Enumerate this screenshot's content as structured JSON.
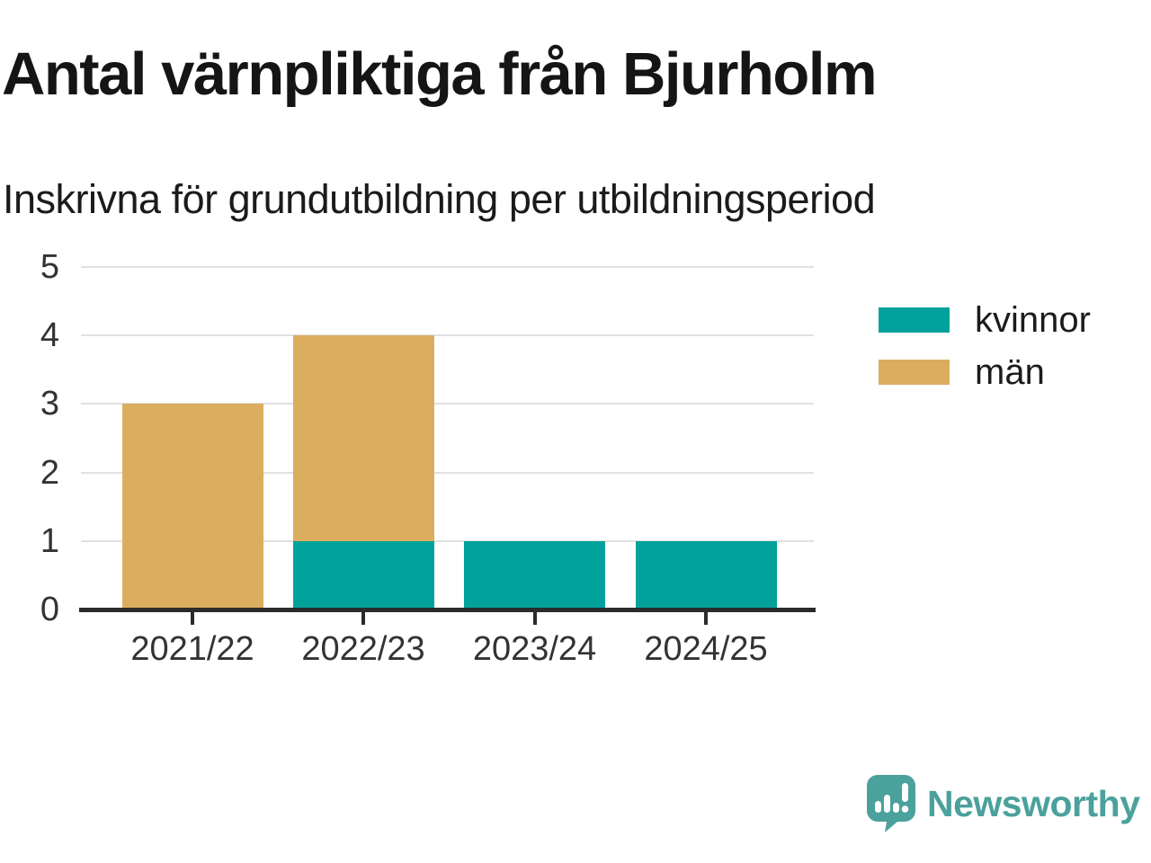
{
  "chart_data": {
    "type": "bar",
    "stacked": true,
    "title": "Antal värnpliktiga från Bjurholm",
    "subtitle": "Inskrivna för grundutbildning per utbildningsperiod",
    "categories": [
      "2021/22",
      "2022/23",
      "2023/24",
      "2024/25"
    ],
    "series": [
      {
        "name": "kvinnor",
        "color": "#00a29b",
        "values": [
          0,
          1,
          1,
          1
        ]
      },
      {
        "name": "män",
        "color": "#dbad5e",
        "values": [
          3,
          3,
          0,
          0
        ]
      }
    ],
    "ylim": [
      0,
      5
    ],
    "yticks": [
      0,
      1,
      2,
      3,
      4,
      5
    ],
    "grid": true,
    "legend_position": "right",
    "axis_color": "#2b2b2b",
    "grid_color": "#e1e1e1",
    "tick_label_color": "#333333"
  },
  "branding": {
    "logo_text": "Newsworthy",
    "logo_color": "#4ba19b",
    "logo_icon": "bar-chart-speech-bubble"
  }
}
